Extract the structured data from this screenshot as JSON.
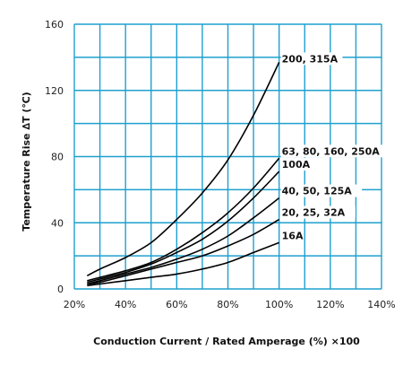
{
  "chart_data": {
    "type": "line",
    "xlabel": "Conduction Current / Rated Amperage (%) ×100",
    "ylabel": "Temperature Rise ∆T (℃)",
    "xlim": [
      20,
      140
    ],
    "ylim": [
      0,
      160
    ],
    "x_ticks": [
      "20%",
      "40%",
      "60%",
      "80%",
      "100%",
      "120%",
      "140%"
    ],
    "y_ticks": [
      "0",
      "40",
      "80",
      "120",
      "160"
    ],
    "grid": true,
    "colors": {
      "grid": "#1fa0cf",
      "lines": "#000000"
    },
    "series": [
      {
        "name": "200, 315A",
        "x": [
          25,
          30,
          40,
          50,
          60,
          70,
          80,
          90,
          100
        ],
        "y": [
          8,
          12,
          19,
          28,
          42,
          58,
          78,
          105,
          137
        ]
      },
      {
        "name": "63, 80, 160, 250A",
        "x": [
          25,
          30,
          40,
          50,
          60,
          70,
          80,
          90,
          100
        ],
        "y": [
          5,
          7,
          11,
          16,
          24,
          34,
          46,
          61,
          79
        ]
      },
      {
        "name": "100A",
        "x": [
          25,
          30,
          40,
          50,
          60,
          70,
          80,
          90,
          100
        ],
        "y": [
          4,
          6,
          10,
          15,
          22,
          30,
          41,
          55,
          71
        ]
      },
      {
        "name": "40, 50, 125A",
        "x": [
          25,
          30,
          40,
          50,
          60,
          70,
          80,
          90,
          100
        ],
        "y": [
          3,
          5,
          9,
          13,
          18,
          24,
          32,
          43,
          55
        ]
      },
      {
        "name": "20, 25, 32A",
        "x": [
          25,
          30,
          40,
          50,
          60,
          70,
          80,
          90,
          100
        ],
        "y": [
          3,
          4,
          8,
          12,
          16,
          20,
          26,
          33,
          42
        ]
      },
      {
        "name": "16A",
        "x": [
          25,
          30,
          40,
          50,
          60,
          70,
          80,
          90,
          100
        ],
        "y": [
          2,
          3,
          5,
          7,
          9,
          12,
          16,
          22,
          28
        ]
      }
    ]
  }
}
